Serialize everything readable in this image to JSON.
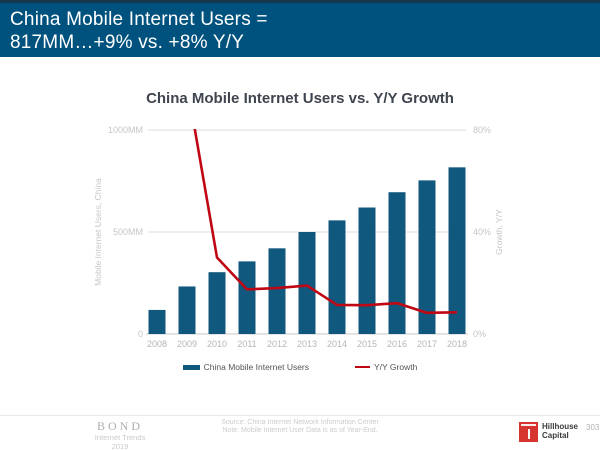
{
  "header": {
    "line1": "China Mobile Internet Users =",
    "line2": "817MM…+9% vs. +8% Y/Y"
  },
  "chart_data": {
    "type": "bar",
    "title": "China Mobile Internet Users vs. Y/Y Growth",
    "categories": [
      "2008",
      "2009",
      "2010",
      "2011",
      "2012",
      "2013",
      "2014",
      "2015",
      "2016",
      "2017",
      "2018"
    ],
    "series": [
      {
        "name": "China Mobile Internet Users",
        "type": "bar",
        "axis": "left",
        "unit": "MM",
        "color": "#11587E",
        "values": [
          118,
          233,
          303,
          356,
          420,
          500,
          557,
          620,
          695,
          753,
          817
        ]
      },
      {
        "name": "Y/Y Growth",
        "type": "line",
        "axis": "right",
        "unit": "%",
        "color": "#C00714",
        "values": [
          null,
          98,
          30,
          17.5,
          18,
          19,
          11.4,
          11.3,
          12.1,
          8.3,
          8.5
        ]
      }
    ],
    "left_axis": {
      "label": "Mobile Internet Users, China",
      "range": [
        0,
        1000
      ],
      "ticks": [
        {
          "label": "0",
          "value": 0
        },
        {
          "label": "500MM",
          "value": 500
        },
        {
          "label": "1000MM",
          "value": 1000
        }
      ]
    },
    "right_axis": {
      "label": "Growth, Y/Y",
      "range": [
        0,
        80
      ],
      "ticks": [
        {
          "label": "0%",
          "value": 0
        },
        {
          "label": "40%",
          "value": 40
        },
        {
          "label": "80%",
          "value": 80
        }
      ]
    },
    "grid": true,
    "legend_position": "bottom",
    "note": "Y/Y Growth line is clipped at top of plot (2009 value exceeds 80% axis max)"
  },
  "legend": {
    "bars_label": "China Mobile Internet Users",
    "line_label": "Y/Y Growth"
  },
  "footer": {
    "brand": {
      "name": "BOND",
      "sub1": "Internet Trends",
      "sub2": "2019"
    },
    "source_line1": "Source: China Internet Network Information Center",
    "source_line2": "Note: Mobile Internet User Data is as of Year-End.",
    "partner": {
      "line1": "Hillhouse",
      "line2": "Capital"
    },
    "page_number": "303"
  },
  "colors": {
    "header_bg": "#00527E",
    "header_border_top": "#16384F",
    "bar": "#11587E",
    "line": "#C00714",
    "title_text": "#3F454F",
    "axis_text": "#C6C6C6",
    "year_text": "#B5B5B5",
    "gridline": "#DCDCDC",
    "baseline": "#C9C9C9",
    "legend_text": "#555555",
    "partner_red": "#D6342F"
  }
}
